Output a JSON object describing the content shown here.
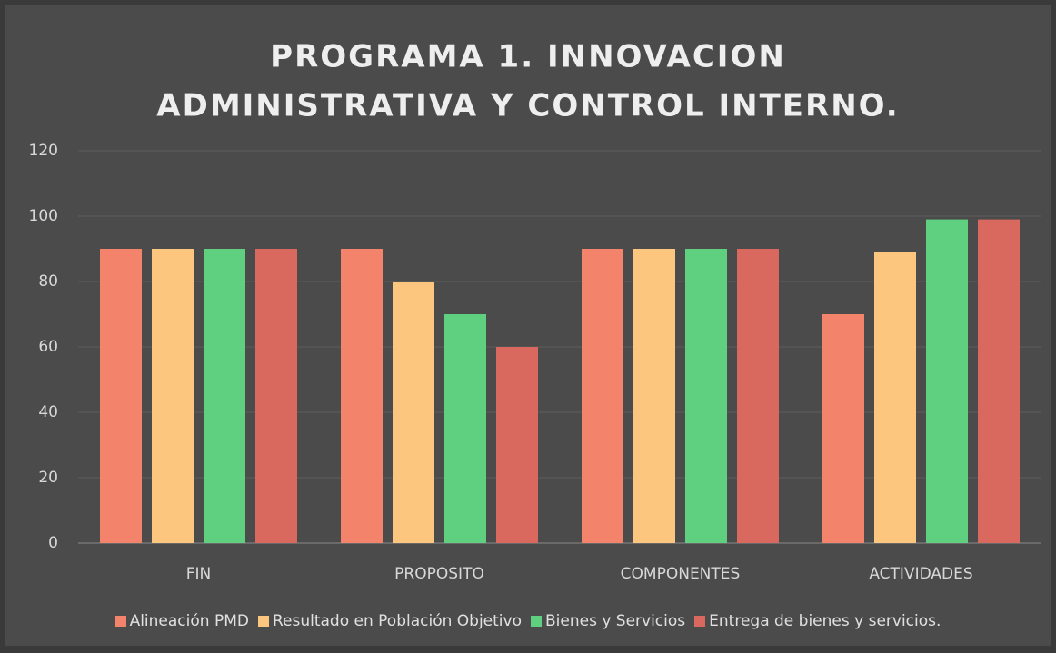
{
  "chart_data": {
    "type": "bar",
    "title": [
      "PROGRAMA 1. INNOVACION",
      "ADMINISTRATIVA Y CONTROL INTERNO."
    ],
    "categories": [
      "FIN",
      "PROPOSITO",
      "COMPONENTES",
      "ACTIVIDADES"
    ],
    "series": [
      {
        "name": "Alineación PMD",
        "color": "#f4836b",
        "values": [
          90,
          90,
          90,
          70
        ]
      },
      {
        "name": "Resultado en Población Objetivo",
        "color": "#fcc67e",
        "values": [
          90,
          80,
          90,
          89
        ]
      },
      {
        "name": "Bienes y Servicios",
        "color": "#5fcf80",
        "values": [
          90,
          70,
          90,
          99
        ]
      },
      {
        "name": "Entrega de bienes y servicios.",
        "color": "#d9685f",
        "values": [
          90,
          60,
          90,
          99
        ]
      }
    ],
    "ylim": [
      0,
      120
    ],
    "yticks": [
      0,
      20,
      40,
      60,
      80,
      100,
      120
    ],
    "grid": true,
    "legend": "bottom"
  }
}
